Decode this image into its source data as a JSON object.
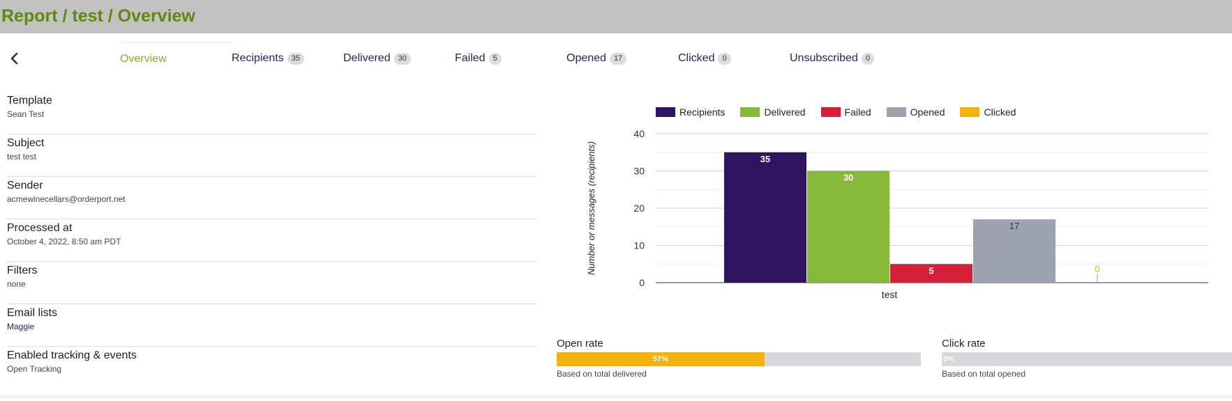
{
  "header": {
    "title": "Report / test / Overview"
  },
  "tabs": [
    {
      "label": "Overview",
      "count": null,
      "active": true
    },
    {
      "label": "Recipients",
      "count": "35"
    },
    {
      "label": "Delivered",
      "count": "30"
    },
    {
      "label": "Failed",
      "count": "5"
    },
    {
      "label": "Opened",
      "count": "17"
    },
    {
      "label": "Clicked",
      "count": "0"
    },
    {
      "label": "Unsubscribed",
      "count": "0"
    }
  ],
  "details": [
    {
      "label": "Template",
      "value": "Sean Test"
    },
    {
      "label": "Subject",
      "value": "test test"
    },
    {
      "label": "Sender",
      "value": "acmewinecellars@orderport.net"
    },
    {
      "label": "Processed at",
      "value": "October 4, 2022, 8:50 am PDT"
    },
    {
      "label": "Filters",
      "value": "none"
    },
    {
      "label": "Email lists",
      "value": "Maggie"
    },
    {
      "label": "Enabled tracking & events",
      "value": "Open Tracking"
    }
  ],
  "rates": {
    "open": {
      "title": "Open rate",
      "value": "57%",
      "fraction": 0.57,
      "sub": "Based on total delivered"
    },
    "click": {
      "title": "Click rate",
      "value": "0%",
      "fraction": 0,
      "sub": "Based on total opened"
    }
  },
  "colors": {
    "recipients": "#2e1461",
    "delivered": "#86b83a",
    "failed": "#d81f3a",
    "opened": "#9ca3ae",
    "clicked": "#f5b20b",
    "link": "#2e1a6b",
    "accent": "#7bb32e"
  },
  "chart_data": {
    "type": "bar",
    "categories": [
      "test"
    ],
    "series": [
      {
        "name": "Recipients",
        "values": [
          35
        ],
        "color": "#2e1461"
      },
      {
        "name": "Delivered",
        "values": [
          30
        ],
        "color": "#86b83a"
      },
      {
        "name": "Failed",
        "values": [
          5
        ],
        "color": "#d81f3a"
      },
      {
        "name": "Opened",
        "values": [
          17
        ],
        "color": "#9ca3ae"
      },
      {
        "name": "Clicked",
        "values": [
          0
        ],
        "color": "#f5b20b"
      }
    ],
    "title": "",
    "xlabel": "test",
    "ylabel": "Number or messages (recipients)",
    "ylim": [
      0,
      40
    ],
    "yticks": [
      0,
      10,
      20,
      30,
      40
    ],
    "grid": true,
    "legend": "top"
  }
}
